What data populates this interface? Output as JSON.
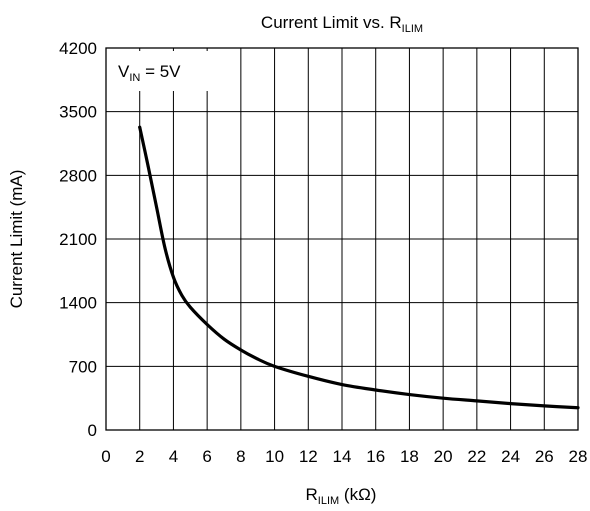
{
  "chart_data": {
    "type": "line",
    "title": {
      "main": "Current Limit vs. R",
      "subscript": "ILIM"
    },
    "xlabel": {
      "main": "R",
      "subscript": "ILIM",
      "suffix": " (kΩ)"
    },
    "ylabel": "Current Limit (mA)",
    "annotation": {
      "main": "V",
      "subscript": "IN",
      "suffix": " = 5V"
    },
    "xlim": [
      0,
      28
    ],
    "ylim": [
      0,
      4200
    ],
    "x_ticks": [
      0,
      2,
      4,
      6,
      8,
      10,
      12,
      14,
      16,
      18,
      20,
      22,
      24,
      26,
      28
    ],
    "x_tick_labels": [
      "0",
      "2",
      "4",
      "6",
      "8",
      "10",
      "12",
      "14",
      "16",
      "18",
      "20",
      "22",
      "24",
      "26",
      "28"
    ],
    "y_ticks": [
      0,
      700,
      1400,
      2100,
      2800,
      3500,
      4200
    ],
    "y_tick_labels": [
      "0",
      "700",
      "1400",
      "2100",
      "2800",
      "3500",
      "4200"
    ],
    "grid": true,
    "series": [
      {
        "color": "#000000",
        "x": [
          2,
          2.5,
          3,
          3.5,
          4,
          4.5,
          5,
          6,
          7,
          8,
          9,
          10,
          12,
          14,
          16,
          18,
          20,
          22,
          24,
          26,
          28
        ],
        "y": [
          3330,
          2900,
          2450,
          2000,
          1680,
          1480,
          1350,
          1160,
          1000,
          880,
          780,
          700,
          590,
          500,
          440,
          390,
          350,
          320,
          290,
          265,
          245
        ]
      }
    ]
  }
}
